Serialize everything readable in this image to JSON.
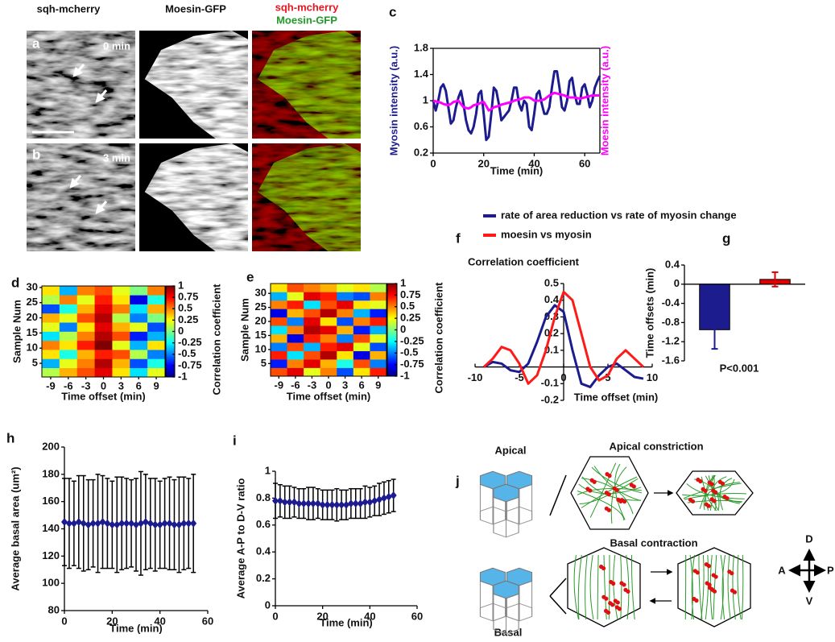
{
  "microscopy": {
    "columns": [
      "sqh-mcherry",
      "Moesin-GFP"
    ],
    "merge": [
      "sqh-mcherry",
      "Moesin-GFP"
    ],
    "rows": [
      {
        "panel": "a",
        "time": "0 min"
      },
      {
        "panel": "b",
        "time": "3 min"
      }
    ]
  },
  "diagram": {
    "panel": "j",
    "apical": "Apical",
    "apical_constriction": "Apical constriction",
    "basal_contraction": "Basal contraction",
    "basal": "Basal",
    "axes": {
      "up": "D",
      "left": "A",
      "right": "P",
      "down": "V"
    }
  },
  "chart_data": [
    {
      "type": "line",
      "panel": "c",
      "x": [
        0,
        1,
        2,
        3,
        4,
        5,
        6,
        7,
        8,
        9,
        10,
        11,
        12,
        13,
        14,
        15,
        16,
        17,
        18,
        19,
        20,
        21,
        22,
        23,
        24,
        25,
        26,
        27,
        28,
        29,
        30,
        31,
        32,
        33,
        34,
        35,
        36,
        37,
        38,
        39,
        40,
        41,
        42,
        43,
        44,
        45,
        46,
        47,
        48,
        49,
        50,
        51,
        52,
        53,
        54,
        55,
        56,
        57,
        58,
        59,
        60,
        61,
        62,
        63,
        64,
        65,
        66
      ],
      "xlim": [
        0,
        66
      ],
      "xticks": [
        0,
        20,
        40,
        60
      ],
      "ylim": [
        0.2,
        1.8
      ],
      "yticks": [
        0.2,
        0.6,
        1,
        1.4,
        1.8
      ],
      "y2lim": [
        0.2,
        1.8
      ],
      "xlabel": "Time (min)",
      "ylabel": "Myosin intensity (a.u.)",
      "y2label": "Moesin intensity (a.u.)",
      "series": [
        {
          "color": "#1c1c8f",
          "values": [
            1.0,
            0.85,
            1.0,
            1.2,
            1.25,
            1.15,
            0.9,
            0.65,
            0.7,
            0.9,
            1.05,
            1.15,
            0.95,
            0.7,
            0.55,
            0.5,
            0.6,
            0.8,
            1.1,
            1.15,
            0.8,
            0.4,
            0.45,
            0.8,
            1.2,
            1.15,
            0.95,
            0.7,
            0.75,
            0.8,
            0.85,
            1.0,
            1.2,
            1.2,
            0.95,
            0.85,
            1.0,
            0.95,
            0.6,
            0.55,
            0.8,
            1.1,
            1.15,
            0.95,
            0.8,
            0.8,
            0.9,
            1.2,
            1.45,
            1.45,
            1.2,
            0.9,
            0.85,
            1.0,
            1.3,
            1.35,
            1.1,
            0.95,
            0.95,
            1.2,
            1.25,
            1.1,
            0.9,
            1.0,
            1.2,
            1.3,
            1.38
          ]
        },
        {
          "color": "#ff00ff",
          "axis": "y2",
          "values": [
            1.0,
            0.99,
            0.98,
            0.97,
            0.95,
            0.94,
            0.93,
            0.95,
            0.98,
            0.99,
            1.0,
            0.95,
            0.9,
            0.89,
            0.88,
            0.9,
            0.93,
            0.94,
            0.95,
            0.97,
            0.98,
            0.92,
            0.85,
            0.87,
            0.9,
            0.91,
            0.92,
            0.94,
            0.95,
            0.96,
            0.97,
            0.98,
            1.0,
            1.01,
            1.02,
            1.03,
            1.05,
            1.05,
            1.05,
            1.03,
            1.0,
            1.0,
            1.0,
            1.01,
            1.02,
            1.05,
            1.08,
            1.1,
            1.12,
            1.11,
            1.1,
            1.09,
            1.08,
            1.06,
            1.05,
            1.05,
            1.05,
            1.04,
            1.03,
            1.04,
            1.05,
            1.06,
            1.07,
            1.08,
            1.08,
            1.08,
            1.08
          ]
        }
      ]
    },
    {
      "type": "line",
      "panel": "f",
      "title": "Correlation coefficient",
      "x": [
        -9,
        -8,
        -7,
        -6,
        -5,
        -4,
        -3,
        -2,
        -1,
        0,
        1,
        2,
        3,
        4,
        5,
        6,
        7,
        8,
        9
      ],
      "xlim": [
        -10,
        10
      ],
      "xticks": [
        -10,
        -5,
        0,
        5,
        10
      ],
      "ylim": [
        -0.2,
        0.5
      ],
      "yticks": [
        -0.2,
        -0.1,
        0.1,
        0.2,
        0.3,
        0.4,
        0.5
      ],
      "axes_at_origin": true,
      "xlabel": "Time offset (min)",
      "series": [
        {
          "name": "rate of area reduction vs rate of myosin change",
          "color": "#1c1c8f",
          "values": [
            0.0,
            0.03,
            0.02,
            -0.02,
            -0.03,
            0.02,
            0.15,
            0.3,
            0.37,
            0.33,
            0.1,
            -0.1,
            -0.12,
            -0.05,
            0.0,
            0.02,
            -0.02,
            -0.06,
            -0.07
          ]
        },
        {
          "name": "moesin vs myosin",
          "color": "#ff1a1a",
          "values": [
            0.0,
            0.05,
            0.12,
            0.1,
            0.02,
            -0.1,
            -0.05,
            0.1,
            0.3,
            0.45,
            0.4,
            0.2,
            0.0,
            -0.08,
            -0.05,
            0.05,
            0.1,
            0.05,
            0.0
          ]
        }
      ]
    },
    {
      "type": "bar",
      "panel": "g",
      "categories": [
        null,
        null
      ],
      "values": [
        -0.95,
        0.1
      ],
      "errors": [
        0.4,
        0.15
      ],
      "colors": [
        "#1c1c8f",
        "#e00000"
      ],
      "ylim": [
        -1.6,
        0.4
      ],
      "yticks": [
        -1.6,
        -1.2,
        -0.8,
        -0.4,
        0,
        0.4
      ],
      "ylabel": "Time offsets (min)",
      "annotation": "P<0.001"
    },
    {
      "type": "heatmap",
      "panel": "d",
      "colormap": "jet",
      "x": [
        -9,
        -6,
        -3,
        0,
        3,
        6,
        9
      ],
      "y": [
        2,
        5,
        8,
        11,
        14,
        17,
        20,
        23,
        26,
        29
      ],
      "z": [
        [
          0.1,
          0.4,
          0.6,
          0.8,
          0.3,
          -0.3,
          0.2
        ],
        [
          -0.4,
          0.2,
          0.5,
          0.9,
          0.4,
          -0.6,
          -0.2
        ],
        [
          0.3,
          -0.2,
          0.4,
          0.7,
          0.6,
          0.1,
          -0.5
        ],
        [
          0.5,
          0.3,
          0.7,
          1,
          0.2,
          -0.4,
          0.3
        ],
        [
          -0.3,
          0.1,
          0.5,
          0.9,
          0.6,
          -0.7,
          -0.4
        ],
        [
          0.2,
          -0.5,
          0.3,
          0.8,
          0.4,
          0.2,
          -0.6
        ],
        [
          0.4,
          0.2,
          0.6,
          0.9,
          0.1,
          -0.5,
          0
        ],
        [
          -0.6,
          -0.2,
          0.4,
          0.8,
          0.5,
          -0.3,
          0.4
        ],
        [
          0.1,
          0.5,
          0.2,
          0.7,
          0.3,
          -0.8,
          -0.2
        ],
        [
          0.3,
          -0.4,
          0.5,
          0.6,
          0.2,
          0,
          0.5
        ]
      ],
      "xlim": [
        -10.5,
        10.5
      ],
      "xticks": [
        -9,
        -6,
        -3,
        0,
        3,
        6,
        9
      ],
      "ylim": [
        0.5,
        30.5
      ],
      "yticks": [
        5,
        10,
        15,
        20,
        25,
        30
      ],
      "clim": [
        -1,
        1
      ],
      "cticks": [
        -1,
        -0.75,
        -0.5,
        -0.25,
        0,
        0.25,
        0.5,
        0.75,
        1
      ],
      "xlabel": "Time offset (min)",
      "ylabel": "Sample Num",
      "clabel": "Correlation coefficient"
    },
    {
      "type": "heatmap",
      "panel": "e",
      "colormap": "jet",
      "x": [
        -9,
        -6,
        -3,
        0,
        3,
        6,
        9
      ],
      "y": [
        2,
        5,
        8,
        11,
        14,
        17,
        20,
        23,
        26,
        29,
        32
      ],
      "z": [
        [
          0.6,
          0.8,
          0.2,
          0.5,
          -0.6,
          0.3,
          0.7
        ],
        [
          -0.7,
          0.5,
          0.8,
          0.4,
          -0.2,
          0.6,
          -0.5
        ],
        [
          0.7,
          -0.3,
          0.6,
          0.9,
          0.3,
          -0.8,
          0.4
        ],
        [
          -0.5,
          0.6,
          -0.4,
          0.7,
          0.8,
          0.2,
          -0.6
        ],
        [
          0.4,
          -0.8,
          0.7,
          0.5,
          -0.5,
          0.6,
          0.2
        ],
        [
          -0.3,
          0.5,
          0.9,
          0.8,
          0.4,
          -0.7,
          -0.4
        ],
        [
          0.6,
          -0.5,
          0.8,
          0.3,
          -0.6,
          0.5,
          0.7
        ],
        [
          -0.8,
          0.4,
          0.6,
          0.9,
          0.5,
          -0.4,
          -0.7
        ],
        [
          0.5,
          0.7,
          -0.3,
          0.6,
          0.8,
          0.3,
          0.2
        ],
        [
          -0.4,
          0.2,
          0.8,
          0.7,
          -0.5,
          -0.6,
          0.5
        ],
        [
          0.3,
          0.6,
          0.5,
          0.4,
          0.2,
          0.3,
          0.1
        ]
      ],
      "xlim": [
        -10.5,
        10.5
      ],
      "xticks": [
        -9,
        -6,
        -3,
        0,
        3,
        6,
        9
      ],
      "ylim": [
        0.5,
        33.5
      ],
      "yticks": [
        5,
        10,
        15,
        20,
        25,
        30
      ],
      "clim": [
        -1,
        1
      ],
      "cticks": [
        -1,
        -0.75,
        -0.5,
        -0.25,
        0,
        0.25,
        0.5,
        0.75,
        1
      ],
      "xlabel": "Time offset (min)",
      "ylabel": "Sample Num",
      "clabel": "Correlation coefficient"
    },
    {
      "type": "line",
      "panel": "h",
      "marker": "diamond",
      "x": [
        0,
        2,
        4,
        6,
        8,
        10,
        12,
        14,
        16,
        18,
        20,
        22,
        24,
        26,
        28,
        30,
        32,
        34,
        36,
        38,
        40,
        42,
        44,
        46,
        48,
        50,
        52,
        54
      ],
      "xlim": [
        0,
        60
      ],
      "xticks": [
        0,
        20,
        40,
        60
      ],
      "ylim": [
        80,
        200
      ],
      "yticks": [
        80,
        100,
        120,
        140,
        160,
        180,
        200
      ],
      "xlabel": "Time (min)",
      "ylabel": "Average basal area (um²)",
      "series": [
        {
          "color": "#1c1c8f",
          "values": [
            145,
            144,
            144,
            145,
            144,
            143,
            144,
            144,
            145,
            144,
            143,
            143,
            144,
            144,
            144,
            143,
            144,
            145,
            144,
            143,
            143,
            144,
            144,
            143,
            143,
            144,
            144,
            144
          ],
          "errors": [
            32,
            33,
            31,
            34,
            35,
            33,
            32,
            36,
            34,
            33,
            32,
            35,
            34,
            33,
            32,
            34,
            38,
            35,
            33,
            34,
            32,
            33,
            34,
            33,
            35,
            34,
            33,
            36
          ]
        }
      ]
    },
    {
      "type": "line",
      "panel": "i",
      "marker": "diamond",
      "x": [
        0,
        2,
        4,
        6,
        8,
        10,
        12,
        14,
        16,
        18,
        20,
        22,
        24,
        26,
        28,
        30,
        32,
        34,
        36,
        38,
        40,
        42,
        44,
        46,
        48,
        50
      ],
      "xlim": [
        0,
        60
      ],
      "xticks": [
        0,
        20,
        40,
        60
      ],
      "ylim": [
        0,
        1
      ],
      "yticks": [
        0,
        0.2,
        0.4,
        0.6,
        0.8,
        1
      ],
      "xlabel": "Time (min)",
      "ylabel": "Average A-P to D-V ratio",
      "series": [
        {
          "color": "#1c1c8f",
          "values": [
            0.78,
            0.78,
            0.77,
            0.77,
            0.77,
            0.76,
            0.76,
            0.76,
            0.76,
            0.76,
            0.75,
            0.75,
            0.75,
            0.75,
            0.75,
            0.75,
            0.76,
            0.76,
            0.76,
            0.77,
            0.77,
            0.78,
            0.79,
            0.8,
            0.81,
            0.82
          ],
          "errors": [
            0.13,
            0.12,
            0.12,
            0.12,
            0.11,
            0.11,
            0.11,
            0.12,
            0.12,
            0.11,
            0.11,
            0.11,
            0.11,
            0.12,
            0.11,
            0.11,
            0.11,
            0.11,
            0.11,
            0.12,
            0.11,
            0.11,
            0.12,
            0.12,
            0.12,
            0.12
          ]
        }
      ]
    }
  ]
}
